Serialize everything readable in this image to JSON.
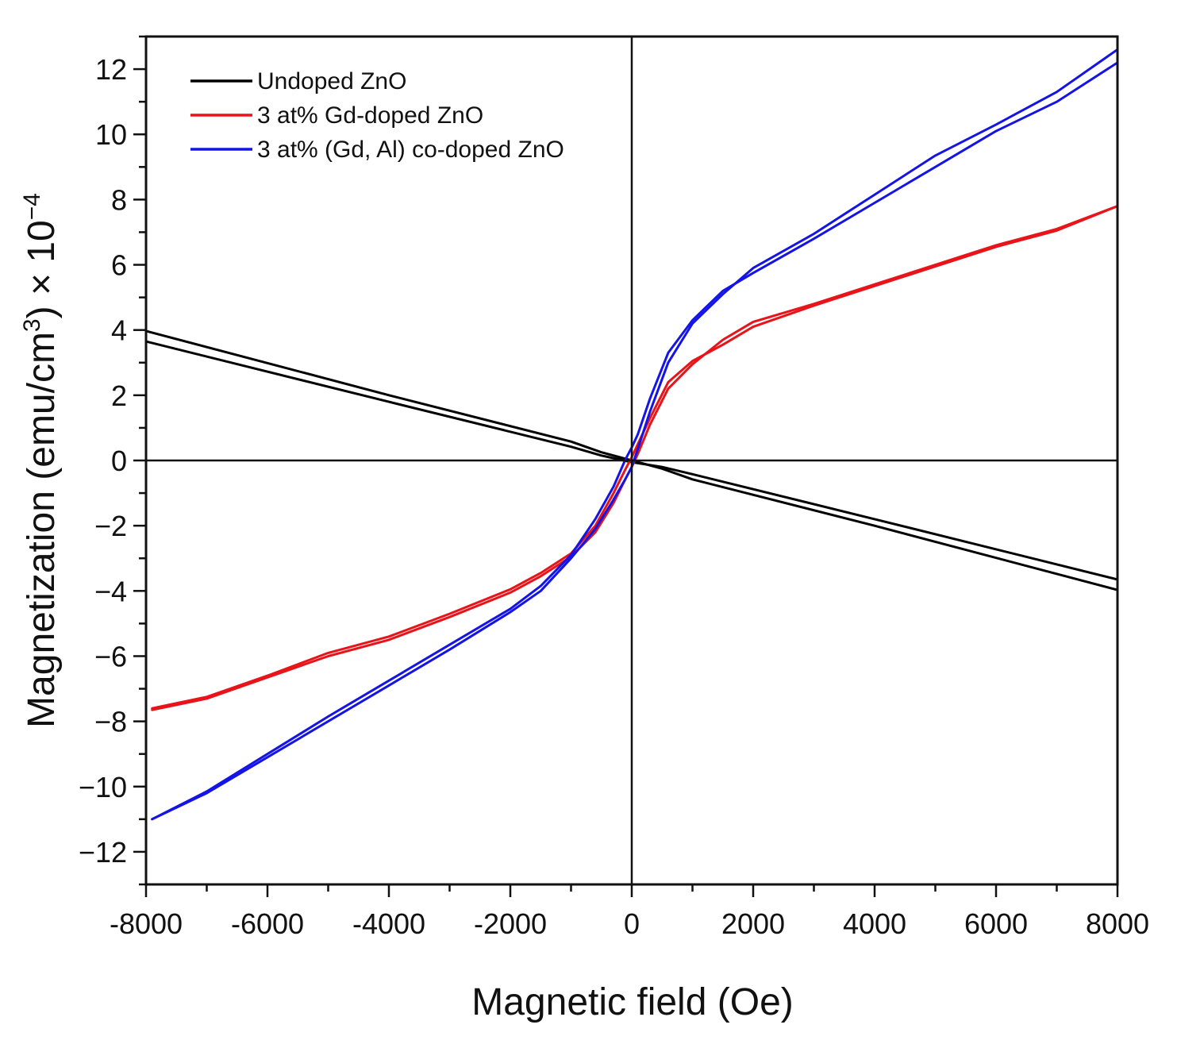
{
  "chart_data": {
    "type": "line",
    "title": "",
    "xlabel": "Magnetic field (Oe)",
    "ylabel": {
      "main": "Magnetization (emu/cm",
      "sup1": "3",
      "mid": ") × 10",
      "sup2": "−4"
    },
    "xlim": [
      -8000,
      8000
    ],
    "ylim": [
      -13,
      13
    ],
    "x_ticks": [
      -8000,
      -6000,
      -4000,
      -2000,
      0,
      2000,
      4000,
      6000,
      8000
    ],
    "x_tick_labels": [
      "-8000",
      "-6000",
      "-4000",
      "-2000",
      "0",
      "2000",
      "4000",
      "6000",
      "8000"
    ],
    "x_minor_step": 1000,
    "y_ticks": [
      -12,
      -10,
      -8,
      -6,
      -4,
      -2,
      0,
      2,
      4,
      6,
      8,
      10,
      12
    ],
    "y_tick_labels": [
      "−12",
      "−10",
      "−8",
      "−6",
      "−4",
      "−2",
      "0",
      "2",
      "4",
      "6",
      "8",
      "10",
      "12"
    ],
    "y_minor_step": 1,
    "zero_lines": true,
    "legend_position": "top-left",
    "series": [
      {
        "name": "Undoped ZnO",
        "color": "#000000",
        "branches": [
          {
            "x": [
              -8000,
              -4000,
              -1000,
              -500,
              0,
              500,
              1000,
              4000,
              8000
            ],
            "y": [
              3.97,
              2.0,
              0.58,
              0.25,
              0.0,
              -0.25,
              -0.58,
              -2.0,
              -3.97
            ]
          },
          {
            "x": [
              -8000,
              -4000,
              -1000,
              -500,
              0,
              500,
              1000,
              4000,
              8000
            ],
            "y": [
              3.65,
              1.8,
              0.42,
              0.15,
              -0.05,
              -0.2,
              -0.42,
              -1.8,
              -3.65
            ]
          }
        ]
      },
      {
        "name": "3 at% Gd-doped ZnO",
        "color": "#e8141a",
        "branches": [
          {
            "x": [
              -7900,
              -7000,
              -6000,
              -5000,
              -4000,
              -3000,
              -2000,
              -1500,
              -1000,
              -600,
              -300,
              -100,
              0,
              100,
              300,
              600,
              1000,
              1500,
              2000,
              3000,
              4000,
              5000,
              6000,
              7000,
              8000
            ],
            "y": [
              -7.65,
              -7.3,
              -6.65,
              -6.0,
              -5.5,
              -4.8,
              -4.05,
              -3.55,
              -2.95,
              -2.2,
              -1.3,
              -0.55,
              -0.2,
              0.2,
              1.1,
              2.2,
              2.95,
              3.7,
              4.25,
              4.8,
              5.4,
              6.0,
              6.6,
              7.1,
              7.8
            ],
            "y_alt": [
              -7.6,
              -7.25,
              -6.6,
              -5.9,
              -5.4,
              -4.7,
              -3.95,
              -3.45,
              -2.85,
              -2.0,
              -1.0,
              -0.25,
              0.1,
              0.5,
              1.3,
              2.4,
              3.05,
              3.55,
              4.1,
              4.75,
              5.35,
              5.95,
              6.55,
              7.05,
              7.8
            ]
          }
        ]
      },
      {
        "name": "3 at% (Gd, Al) co-doped ZnO",
        "color": "#1414e6",
        "branches": [
          {
            "x": [
              -7900,
              -7000,
              -6000,
              -5000,
              -4000,
              -3000,
              -2000,
              -1500,
              -1000,
              -600,
              -300,
              -100,
              0,
              100,
              300,
              600,
              1000,
              1500,
              2000,
              3000,
              4000,
              5000,
              6000,
              7000,
              8000
            ],
            "y": [
              -11.0,
              -10.2,
              -9.1,
              -8.0,
              -6.9,
              -5.8,
              -4.65,
              -4.0,
              -3.0,
              -2.1,
              -1.2,
              -0.55,
              -0.2,
              0.35,
              1.5,
              3.0,
              4.2,
              5.1,
              5.9,
              6.95,
              8.15,
              9.35,
              10.3,
              11.3,
              12.6
            ],
            "y_alt": [
              -11.0,
              -10.15,
              -9.0,
              -7.85,
              -6.75,
              -5.65,
              -4.55,
              -3.85,
              -2.9,
              -1.8,
              -0.8,
              0.05,
              0.4,
              0.8,
              1.9,
              3.3,
              4.3,
              5.2,
              5.75,
              6.8,
              7.9,
              9.0,
              10.1,
              11.0,
              12.2
            ]
          }
        ]
      }
    ]
  }
}
